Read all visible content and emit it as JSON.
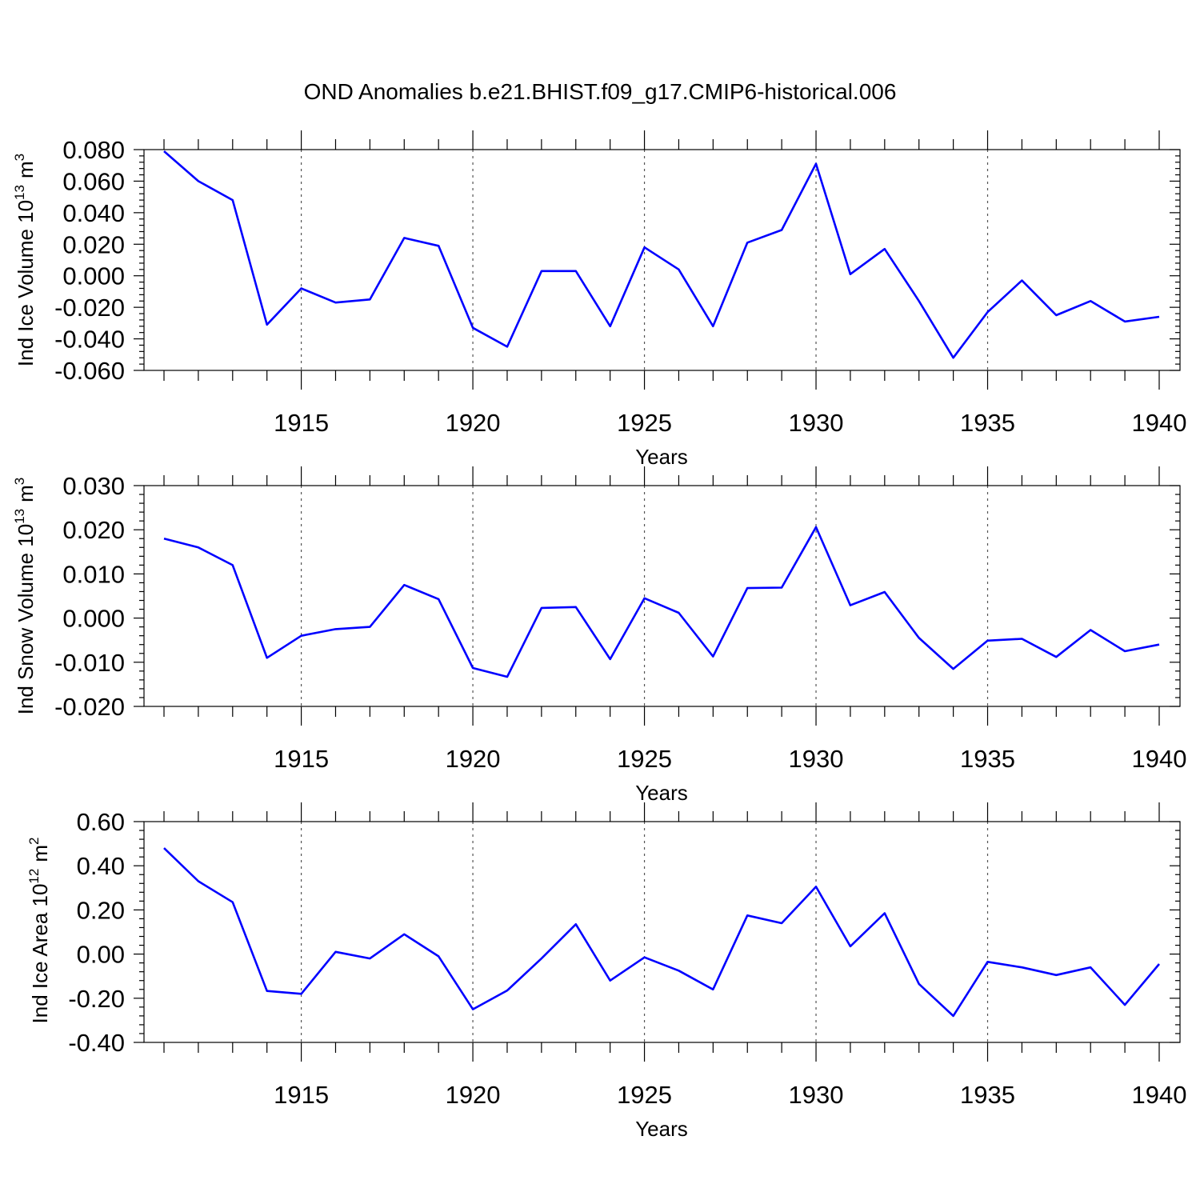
{
  "title": "OND Anomalies b.e21.BHIST.f09_g17.CMIP6-historical.006",
  "line_color": "#0000ff",
  "chart_data": [
    {
      "type": "line",
      "ylabel_main": "Ind Ice Volume 10",
      "ylabel_exp": "13",
      "ylabel_unit": "m",
      "ylabel_unit_exp": "3",
      "xlabel": "Years",
      "xlim": [
        1911,
        1940
      ],
      "ylim": [
        -0.06,
        0.08
      ],
      "yticks": [
        0.08,
        0.06,
        0.04,
        0.02,
        0.0,
        -0.02,
        -0.04,
        -0.06
      ],
      "ytick_labels": [
        "0.080",
        "0.060",
        "0.040",
        "0.020",
        "0.000",
        "-0.020",
        "-0.040",
        "-0.060"
      ],
      "xticks": [
        1915,
        1920,
        1925,
        1930,
        1935,
        1940
      ],
      "xtick_labels": [
        "1915",
        "1920",
        "1925",
        "1930",
        "1935",
        "1940"
      ],
      "x": [
        1911,
        1912,
        1913,
        1914,
        1915,
        1916,
        1917,
        1918,
        1919,
        1920,
        1921,
        1922,
        1923,
        1924,
        1925,
        1926,
        1927,
        1928,
        1929,
        1930,
        1931,
        1932,
        1933,
        1934,
        1935,
        1936,
        1937,
        1938,
        1939,
        1940
      ],
      "values": [
        0.079,
        0.06,
        0.048,
        -0.031,
        -0.008,
        -0.017,
        -0.015,
        0.024,
        0.019,
        -0.033,
        -0.045,
        0.003,
        0.003,
        -0.032,
        0.018,
        0.004,
        -0.032,
        0.021,
        0.029,
        0.071,
        0.001,
        0.017,
        -0.016,
        -0.052,
        -0.023,
        -0.003,
        -0.025,
        -0.016,
        -0.029,
        -0.026
      ]
    },
    {
      "type": "line",
      "ylabel_main": "Ind Snow Volume 10",
      "ylabel_exp": "13",
      "ylabel_unit": "m",
      "ylabel_unit_exp": "3",
      "xlabel": "Years",
      "xlim": [
        1911,
        1940
      ],
      "ylim": [
        -0.02,
        0.03
      ],
      "yticks": [
        0.03,
        0.02,
        0.01,
        0.0,
        -0.01,
        -0.02
      ],
      "ytick_labels": [
        "0.030",
        "0.020",
        "0.010",
        "0.000",
        "-0.010",
        "-0.020"
      ],
      "xticks": [
        1915,
        1920,
        1925,
        1930,
        1935,
        1940
      ],
      "xtick_labels": [
        "1915",
        "1920",
        "1925",
        "1930",
        "1935",
        "1940"
      ],
      "x": [
        1911,
        1912,
        1913,
        1914,
        1915,
        1916,
        1917,
        1918,
        1919,
        1920,
        1921,
        1922,
        1923,
        1924,
        1925,
        1926,
        1927,
        1928,
        1929,
        1930,
        1931,
        1932,
        1933,
        1934,
        1935,
        1936,
        1937,
        1938,
        1939,
        1940
      ],
      "values": [
        0.018,
        0.016,
        0.012,
        -0.009,
        -0.004,
        -0.0025,
        -0.002,
        0.0075,
        0.0043,
        -0.0113,
        -0.0133,
        0.0023,
        0.0025,
        -0.0093,
        0.0045,
        0.0012,
        -0.0087,
        0.0068,
        0.0069,
        0.0206,
        0.0029,
        0.0059,
        -0.0045,
        -0.0115,
        -0.0051,
        -0.0047,
        -0.0088,
        -0.0027,
        -0.0075,
        -0.006
      ]
    },
    {
      "type": "line",
      "ylabel_main": "Ind Ice Area 10",
      "ylabel_exp": "12",
      "ylabel_unit": "m",
      "ylabel_unit_exp": "2",
      "xlabel": "Years",
      "xlim": [
        1911,
        1940
      ],
      "ylim": [
        -0.4,
        0.6
      ],
      "yticks": [
        0.6,
        0.4,
        0.2,
        0.0,
        -0.2,
        -0.4
      ],
      "ytick_labels": [
        "0.60",
        "0.40",
        "0.20",
        "0.00",
        "-0.20",
        "-0.40"
      ],
      "xticks": [
        1915,
        1920,
        1925,
        1930,
        1935,
        1940
      ],
      "xtick_labels": [
        "1915",
        "1920",
        "1925",
        "1930",
        "1935",
        "1940"
      ],
      "x": [
        1911,
        1912,
        1913,
        1914,
        1915,
        1916,
        1917,
        1918,
        1919,
        1920,
        1921,
        1922,
        1923,
        1924,
        1925,
        1926,
        1927,
        1928,
        1929,
        1930,
        1931,
        1932,
        1933,
        1934,
        1935,
        1936,
        1937,
        1938,
        1939,
        1940
      ],
      "values": [
        0.48,
        0.33,
        0.235,
        -0.167,
        -0.18,
        0.01,
        -0.02,
        0.09,
        -0.01,
        -0.25,
        -0.165,
        -0.02,
        0.135,
        -0.12,
        -0.015,
        -0.075,
        -0.16,
        0.175,
        0.14,
        0.305,
        0.035,
        0.185,
        -0.135,
        -0.28,
        -0.035,
        -0.06,
        -0.095,
        -0.06,
        -0.23,
        -0.045
      ]
    }
  ]
}
